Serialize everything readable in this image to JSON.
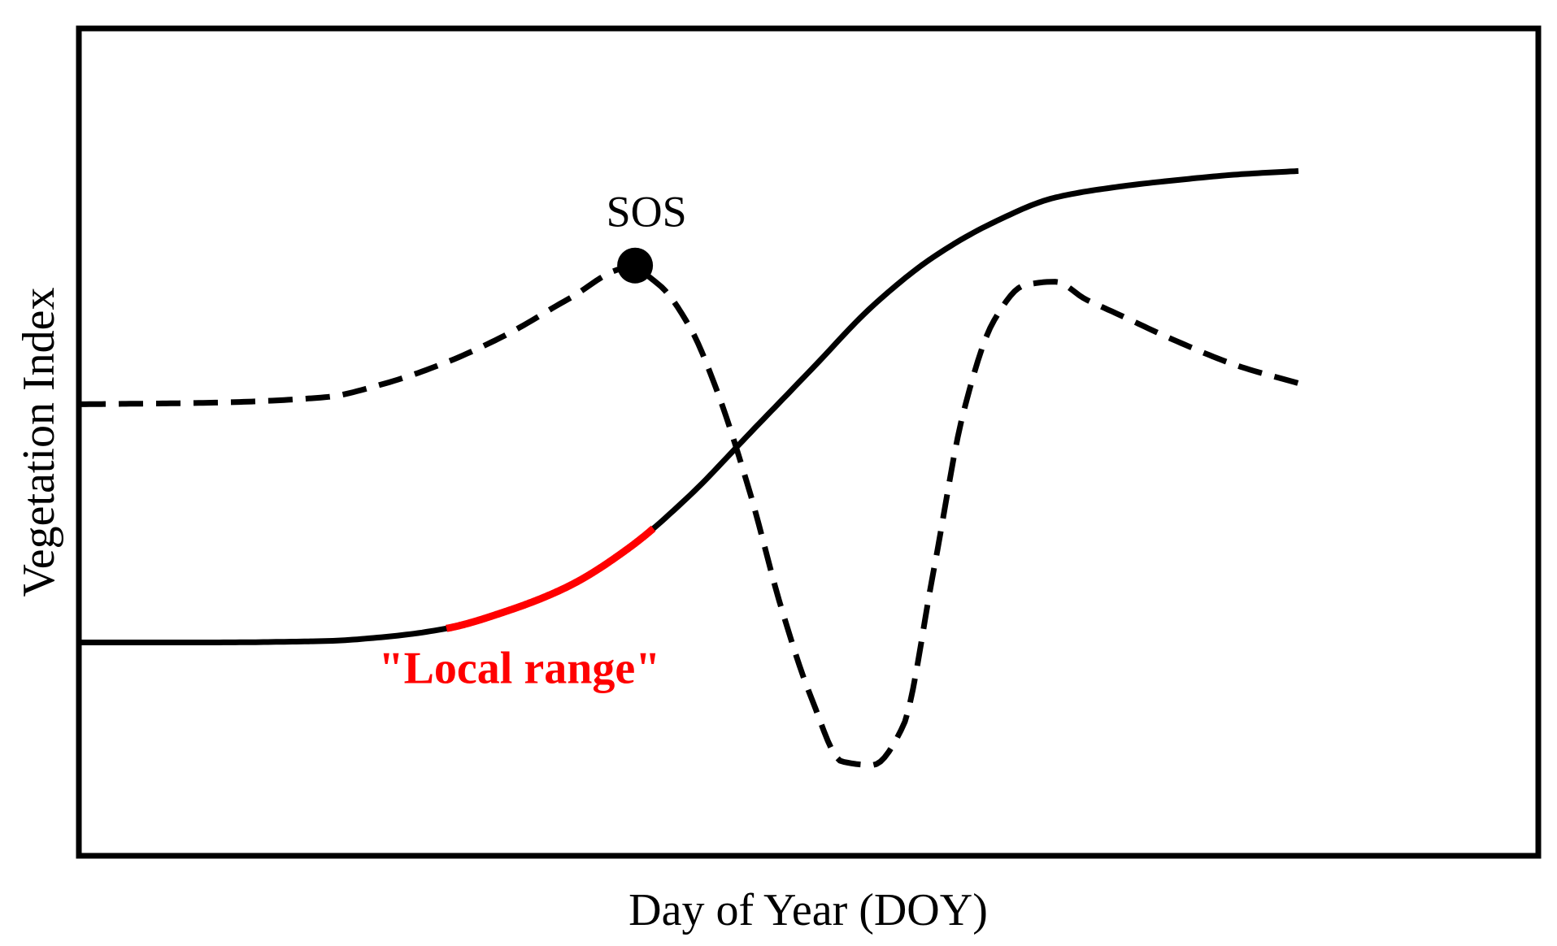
{
  "chart_data": {
    "type": "line",
    "title": "",
    "xlabel": "Day of Year (DOY)",
    "ylabel": "Vegetation Index",
    "xlim": [
      0,
      100
    ],
    "ylim": [
      0,
      100
    ],
    "grid": false,
    "colors": {
      "main": "#000000",
      "highlight": "#ff0000"
    },
    "series": [
      {
        "style": "solid",
        "x": [
          0,
          10,
          20,
          25,
          30,
          35,
          40,
          45,
          50,
          55,
          60,
          65,
          70,
          75,
          80,
          85,
          90,
          95,
          100
        ],
        "y": [
          25,
          25,
          25.2,
          25.8,
          27,
          29.5,
          33,
          38.5,
          46,
          55,
          64,
          73,
          80,
          85,
          88.5,
          90,
          91,
          91.8,
          92.3
        ]
      },
      {
        "style": "dashed",
        "x": [
          0,
          10,
          20,
          25,
          30,
          35,
          40,
          45,
          47.5,
          50,
          52,
          55,
          57.5,
          60,
          62.5,
          65,
          67.5,
          70,
          72.5,
          75,
          77.5,
          80,
          82.5,
          85,
          90,
          95,
          100
        ],
        "y": [
          59,
          59.2,
          60,
          62,
          65,
          69,
          74,
          78.5,
          76,
          70,
          62,
          46,
          30,
          17,
          8,
          7.5,
          13,
          35,
          58,
          71,
          76,
          76.5,
          74,
          72,
          68,
          64.5,
          62
        ]
      }
    ],
    "highlight": {
      "series": 0,
      "x_range": [
        30,
        47
      ],
      "label": "\"Local range\""
    },
    "annotations": [
      {
        "label": "SOS",
        "x": 45.5,
        "y": 78.8,
        "marker": "filled-circle"
      }
    ]
  }
}
